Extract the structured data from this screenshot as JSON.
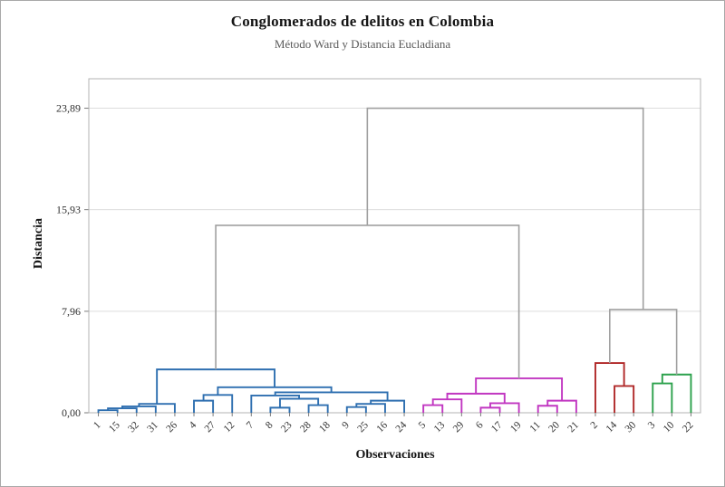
{
  "chart_data": {
    "type": "dendrogram",
    "title": "Conglomerados de delitos en Colombia",
    "subtitle": "Método Ward y Distancia Eucladiana",
    "xlabel": "Observaciones",
    "ylabel": "Distancia",
    "ylim": [
      0,
      26.2
    ],
    "grid": "horizontal",
    "y_ticks": [
      {
        "value": 0,
        "label": "0,00"
      },
      {
        "value": 7.96,
        "label": "7,96"
      },
      {
        "value": 15.93,
        "label": "15,93"
      },
      {
        "value": 23.89,
        "label": "23,89"
      }
    ],
    "leaves": [
      "1",
      "15",
      "32",
      "31",
      "26",
      "4",
      "27",
      "12",
      "7",
      "8",
      "23",
      "28",
      "18",
      "9",
      "25",
      "16",
      "24",
      "5",
      "13",
      "29",
      "6",
      "17",
      "19",
      "11",
      "20",
      "21",
      "2",
      "14",
      "30",
      "3",
      "10",
      "22"
    ],
    "colors": {
      "blue": "#2e6fb0",
      "magenta": "#c136c1",
      "red": "#b02828",
      "green": "#2ca14c",
      "gray": "#a0a0a0"
    },
    "merges": [
      {
        "a": 0,
        "b": 1,
        "h": 0.2,
        "c": "blue"
      },
      {
        "a": 32,
        "b": 2,
        "h": 0.35,
        "c": "blue"
      },
      {
        "a": 33,
        "b": 3,
        "h": 0.5,
        "c": "blue"
      },
      {
        "a": 34,
        "b": 4,
        "h": 0.7,
        "c": "blue"
      },
      {
        "a": 5,
        "b": 6,
        "h": 0.95,
        "c": "blue"
      },
      {
        "a": 36,
        "b": 7,
        "h": 1.4,
        "c": "blue"
      },
      {
        "a": 9,
        "b": 10,
        "h": 0.4,
        "c": "blue"
      },
      {
        "a": 11,
        "b": 12,
        "h": 0.6,
        "c": "blue"
      },
      {
        "a": 38,
        "b": 39,
        "h": 1.1,
        "c": "blue"
      },
      {
        "a": 8,
        "b": 40,
        "h": 1.35,
        "c": "blue"
      },
      {
        "a": 13,
        "b": 14,
        "h": 0.45,
        "c": "blue"
      },
      {
        "a": 42,
        "b": 15,
        "h": 0.7,
        "c": "blue"
      },
      {
        "a": 43,
        "b": 16,
        "h": 0.95,
        "c": "blue"
      },
      {
        "a": 41,
        "b": 44,
        "h": 1.6,
        "c": "blue"
      },
      {
        "a": 37,
        "b": 45,
        "h": 2.0,
        "c": "blue"
      },
      {
        "a": 35,
        "b": 46,
        "h": 3.4,
        "c": "blue"
      },
      {
        "a": 17,
        "b": 18,
        "h": 0.6,
        "c": "magenta"
      },
      {
        "a": 48,
        "b": 19,
        "h": 1.05,
        "c": "magenta"
      },
      {
        "a": 20,
        "b": 21,
        "h": 0.4,
        "c": "magenta"
      },
      {
        "a": 50,
        "b": 22,
        "h": 0.75,
        "c": "magenta"
      },
      {
        "a": 49,
        "b": 51,
        "h": 1.5,
        "c": "magenta"
      },
      {
        "a": 23,
        "b": 24,
        "h": 0.55,
        "c": "magenta"
      },
      {
        "a": 53,
        "b": 25,
        "h": 0.95,
        "c": "magenta"
      },
      {
        "a": 52,
        "b": 54,
        "h": 2.7,
        "c": "magenta"
      },
      {
        "a": 27,
        "b": 28,
        "h": 2.1,
        "c": "red"
      },
      {
        "a": 26,
        "b": 56,
        "h": 3.9,
        "c": "red"
      },
      {
        "a": 29,
        "b": 30,
        "h": 2.3,
        "c": "green"
      },
      {
        "a": 58,
        "b": 31,
        "h": 3.0,
        "c": "green"
      },
      {
        "a": 47,
        "b": 55,
        "h": 14.7,
        "c": "gray"
      },
      {
        "a": 57,
        "b": 59,
        "h": 8.1,
        "c": "gray"
      },
      {
        "a": 60,
        "b": 61,
        "h": 23.89,
        "c": "gray"
      }
    ]
  }
}
